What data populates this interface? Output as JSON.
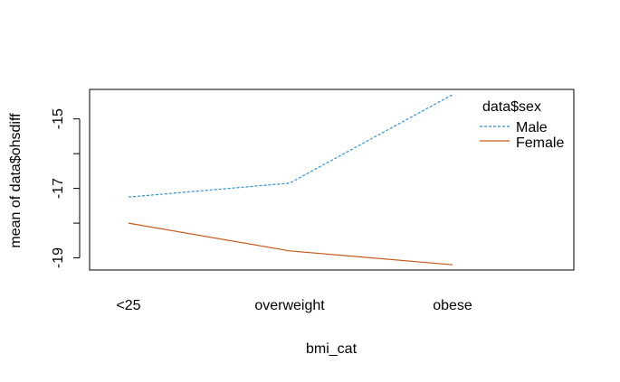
{
  "chart_data": {
    "type": "line",
    "xlabel": "bmi_cat",
    "ylabel": "mean of  data$ohsdiff",
    "categories": [
      "<25",
      "overweight",
      "obese"
    ],
    "ylim": [
      -19.35,
      -14.15
    ],
    "yticks": [
      -19,
      -17,
      -15
    ],
    "ytick_labels": [
      "-19",
      "-17",
      "-15"
    ],
    "legend_title": "data$sex",
    "legend_position": "top-right",
    "grid": false,
    "series": [
      {
        "name": "Male",
        "values": [
          -17.25,
          -16.85,
          -14.3
        ],
        "color": "#2e8fd8",
        "linestyle": "dashed"
      },
      {
        "name": "Female",
        "values": [
          -18.0,
          -18.8,
          -19.2
        ],
        "color": "#c85a1c",
        "linestyle": "solid"
      }
    ]
  }
}
